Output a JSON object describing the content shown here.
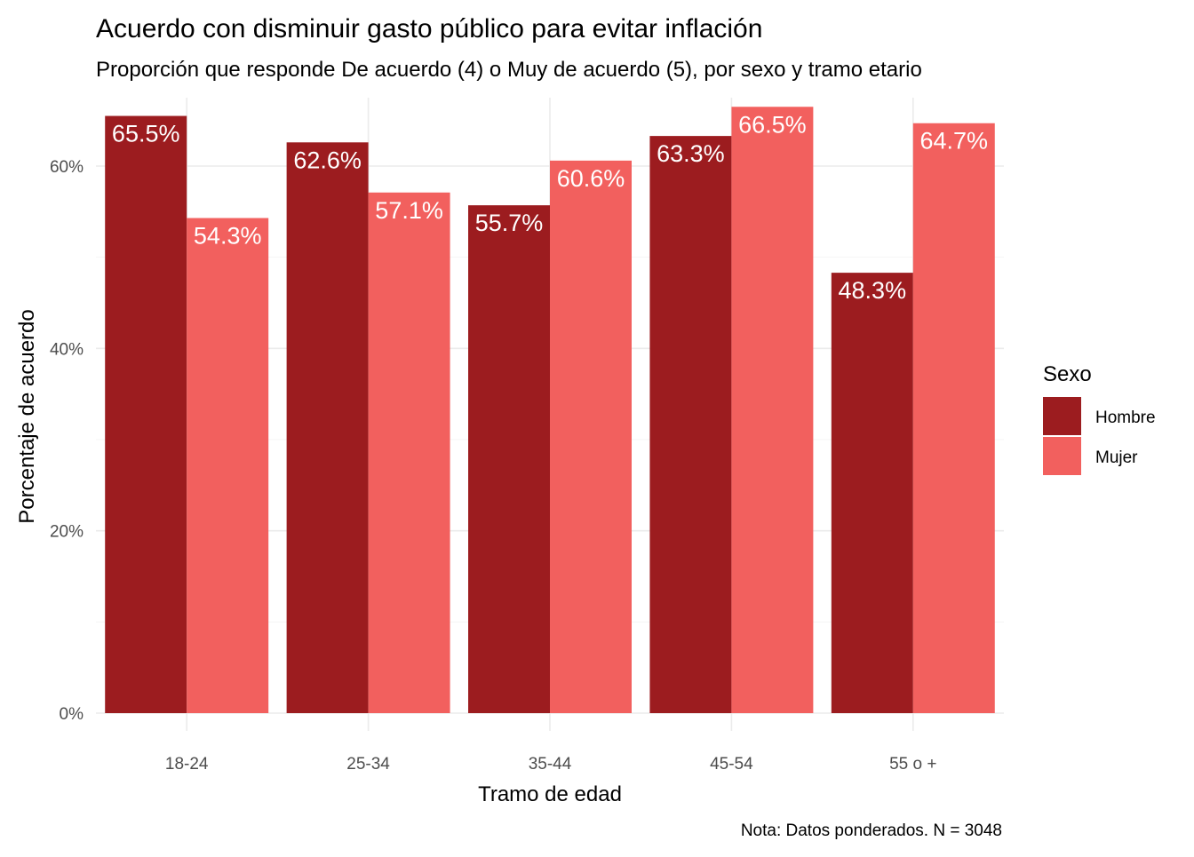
{
  "chart_data": {
    "type": "bar",
    "title": "Acuerdo con disminuir gasto público para evitar inflación",
    "subtitle": "Proporción que responde De acuerdo (4) o Muy de acuerdo (5), por sexo y tramo etario",
    "xlabel": "Tramo de edad",
    "ylabel": "Porcentaje de acuerdo",
    "caption": "Nota: Datos ponderados. N = 3048",
    "categories": [
      "18-24",
      "25-34",
      "35-44",
      "45-54",
      "55 o +"
    ],
    "series": [
      {
        "name": "Hombre",
        "color": "#9C1C1F",
        "values": [
          65.5,
          62.6,
          55.7,
          63.3,
          48.3
        ],
        "labels": [
          "65.5%",
          "62.6%",
          "55.7%",
          "63.3%",
          "48.3%"
        ]
      },
      {
        "name": "Mujer",
        "color": "#F2605E",
        "values": [
          54.3,
          57.1,
          60.6,
          66.5,
          64.7
        ],
        "labels": [
          "54.3%",
          "57.1%",
          "60.6%",
          "66.5%",
          "64.7%"
        ]
      }
    ],
    "ylim": [
      0,
      67.5
    ],
    "yticks": [
      0,
      20,
      40,
      60
    ],
    "ytick_labels": [
      "0%",
      "20%",
      "40%",
      "60%"
    ],
    "legend": {
      "title": "Sexo",
      "position": "right"
    },
    "grid": true,
    "colors": {
      "major_grid": "#EBEBEB",
      "minor_grid": "#F4F4F4",
      "axis_text": "#4D4D4D",
      "text": "#000000",
      "bar_label": "#FFFFFF"
    }
  }
}
